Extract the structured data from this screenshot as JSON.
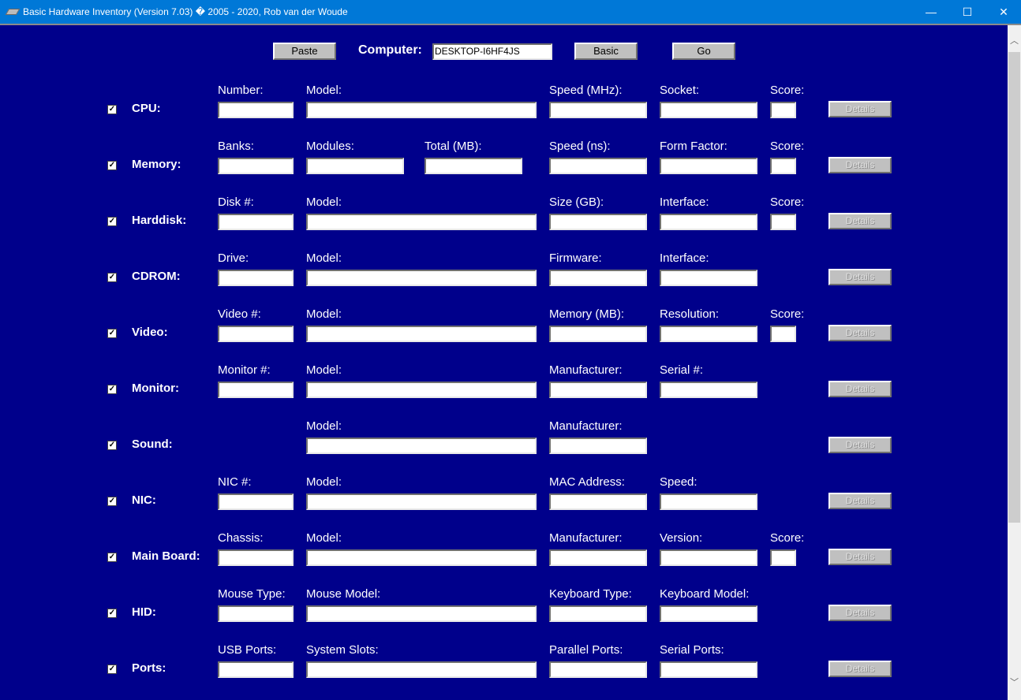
{
  "window": {
    "title": "Basic Hardware Inventory (Version 7.03) � 2005 - 2020, Rob van der Woude",
    "minimize": "—",
    "maximize": "☐",
    "close": "✕"
  },
  "toolbar": {
    "paste": "Paste",
    "computer_label": "Computer:",
    "computer_value": "DESKTOP-I6HF4JS",
    "basic": "Basic",
    "go": "Go"
  },
  "details_label": "Details",
  "sections": [
    {
      "name": "CPU:",
      "checked": true,
      "fields": [
        "Number:",
        "Model:",
        "Speed (MHz):",
        "Socket:",
        "Score:"
      ]
    },
    {
      "name": "Memory:",
      "checked": true,
      "fields": [
        "Banks:",
        "Modules:",
        "Total (MB):",
        "Speed (ns):",
        "Form Factor:",
        "Score:"
      ]
    },
    {
      "name": "Harddisk:",
      "checked": true,
      "fields": [
        "Disk #:",
        "Model:",
        "Size (GB):",
        "Interface:",
        "Score:"
      ]
    },
    {
      "name": "CDROM:",
      "checked": true,
      "fields": [
        "Drive:",
        "Model:",
        "Firmware:",
        "Interface:"
      ]
    },
    {
      "name": "Video:",
      "checked": true,
      "fields": [
        "Video #:",
        "Model:",
        "Memory (MB):",
        "Resolution:",
        "Score:"
      ]
    },
    {
      "name": "Monitor:",
      "checked": true,
      "fields": [
        "Monitor #:",
        "Model:",
        "Manufacturer:",
        "Serial #:"
      ]
    },
    {
      "name": "Sound:",
      "checked": true,
      "fields": [
        "Model:",
        "Manufacturer:"
      ]
    },
    {
      "name": "NIC:",
      "checked": true,
      "fields": [
        "NIC #:",
        "Model:",
        "MAC Address:",
        "Speed:"
      ]
    },
    {
      "name": "Main Board:",
      "checked": true,
      "fields": [
        "Chassis:",
        "Model:",
        "Manufacturer:",
        "Version:",
        "Score:"
      ]
    },
    {
      "name": "HID:",
      "checked": true,
      "fields": [
        "Mouse Type:",
        "Mouse Model:",
        "Keyboard Type:",
        "Keyboard Model:"
      ]
    },
    {
      "name": "Ports:",
      "checked": true,
      "fields": [
        "USB Ports:",
        "System Slots:",
        "Parallel Ports:",
        "Serial Ports:"
      ]
    }
  ]
}
